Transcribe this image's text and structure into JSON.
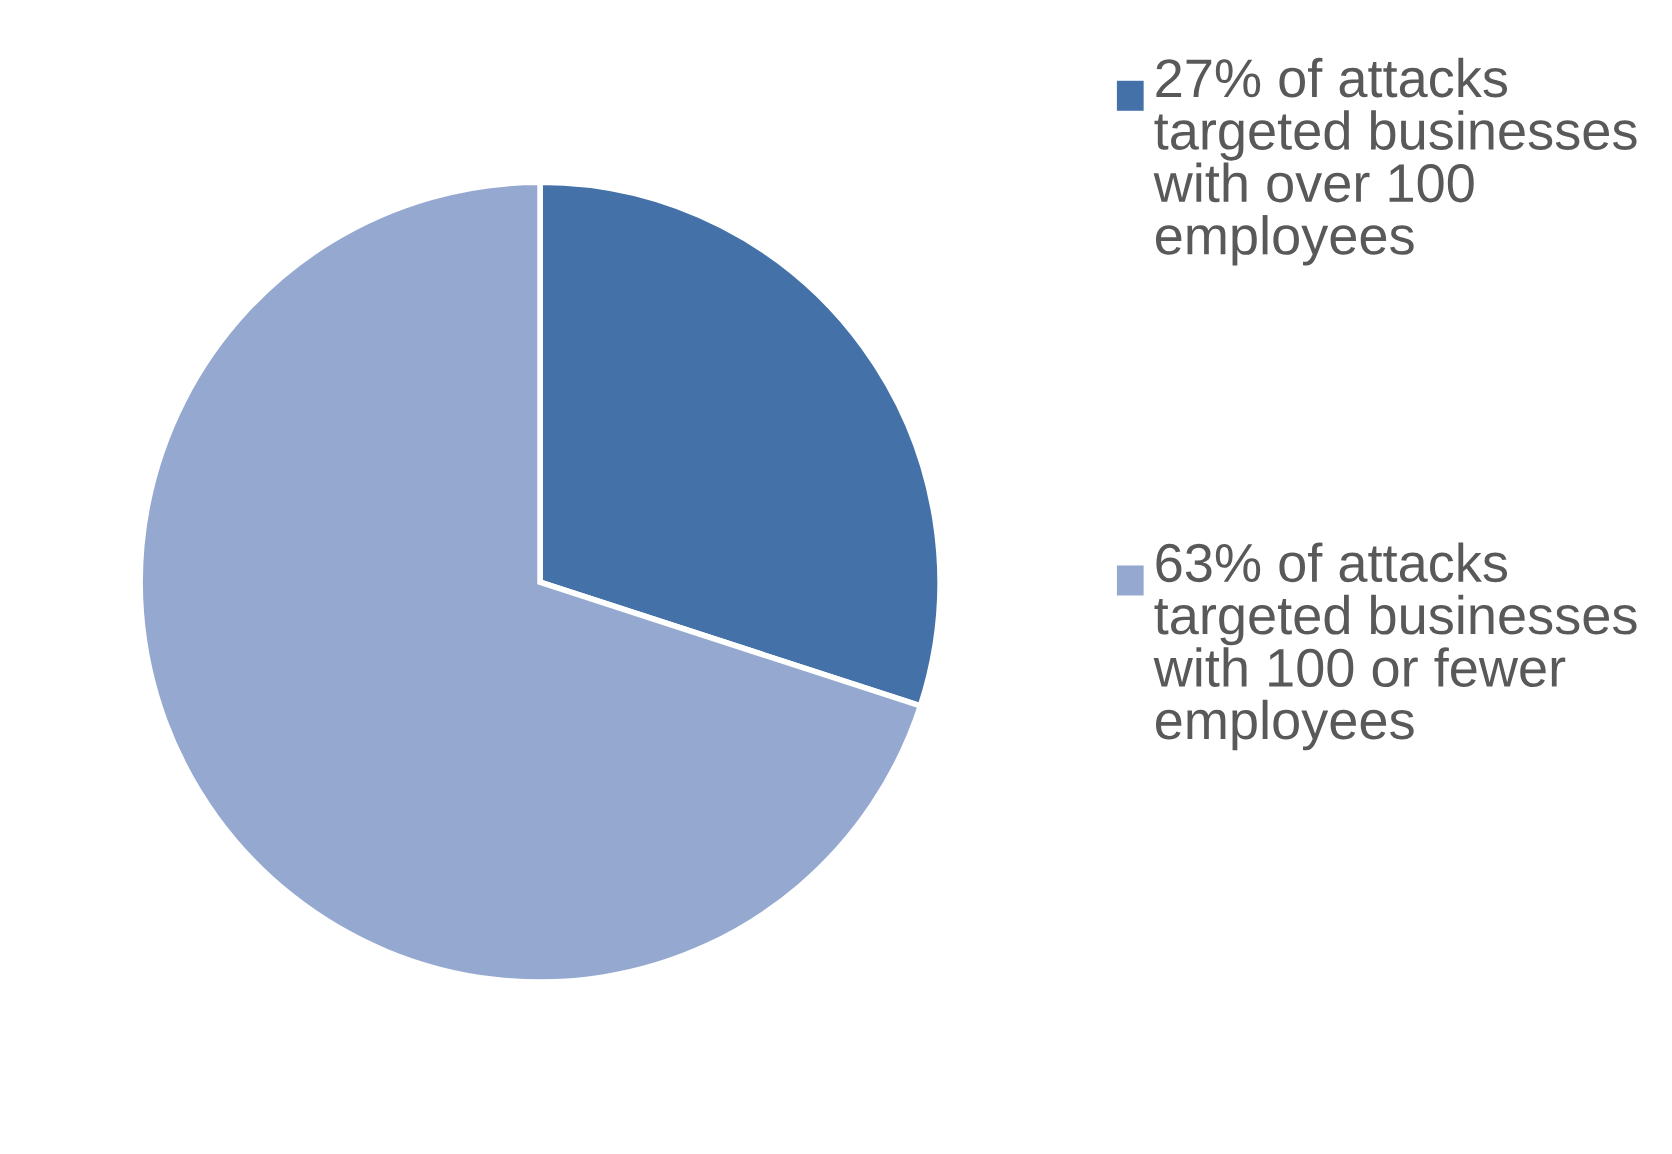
{
  "chart_data": {
    "type": "pie",
    "categories": [
      "27% of attacks targeted businesses with over 100 employees",
      "63% of attacks targeted businesses with 100 or fewer employees"
    ],
    "values": [
      27,
      63
    ],
    "colors": [
      "#4472a8",
      "#95a9d0"
    ],
    "legend": "right"
  }
}
